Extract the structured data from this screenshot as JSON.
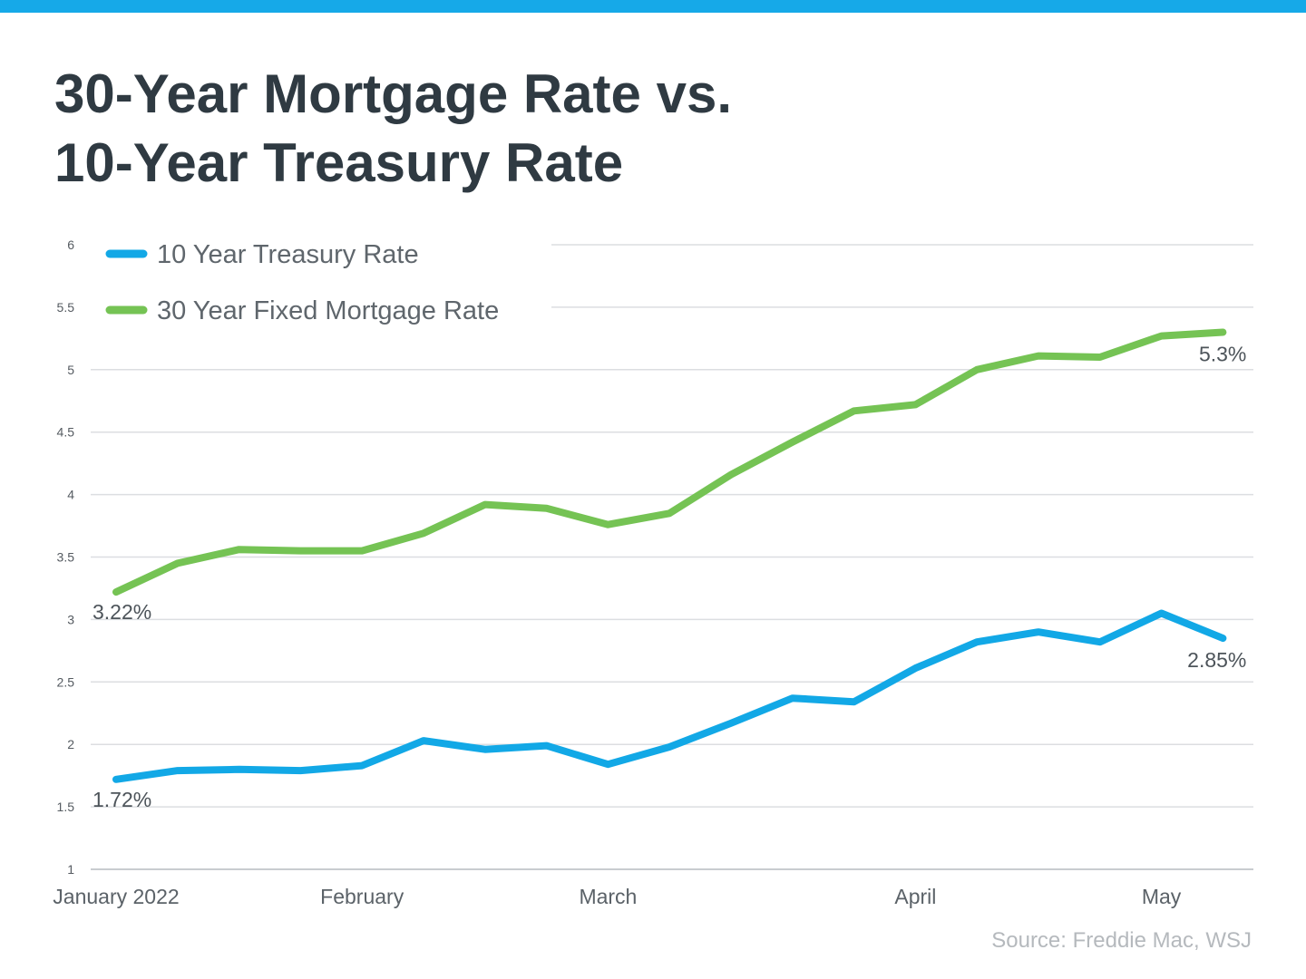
{
  "header": {
    "title_line1": "30-Year Mortgage Rate vs.",
    "title_line2": "10-Year Treasury Rate",
    "accent_color": "#16a9e8"
  },
  "footer": {
    "source": "Source: Freddie Mac, WSJ"
  },
  "chart_data": {
    "type": "line",
    "title": "30-Year Mortgage Rate vs. 10-Year Treasury Rate",
    "xlabel": "",
    "ylabel": "",
    "ylim": [
      1,
      6
    ],
    "yticks": [
      "1",
      "1.5",
      "2",
      "2.5",
      "3",
      "3.5",
      "4",
      "4.5",
      "5",
      "5.5",
      "6"
    ],
    "x_ticks": [
      {
        "label": "January 2022",
        "week": 0
      },
      {
        "label": "February",
        "week": 4
      },
      {
        "label": "March",
        "week": 8
      },
      {
        "label": "April",
        "week": 13
      },
      {
        "label": "May",
        "week": 17
      }
    ],
    "grid": true,
    "legend_position": "top-left",
    "series": [
      {
        "name": "10 Year Treasury Rate",
        "color": "#12a8e6",
        "values": [
          1.72,
          1.79,
          1.8,
          1.79,
          1.83,
          2.03,
          1.96,
          1.99,
          1.84,
          1.98,
          2.17,
          2.37,
          2.34,
          2.61,
          2.82,
          2.9,
          2.82,
          3.05,
          2.85
        ],
        "start_label": "1.72%",
        "end_label": "2.85%"
      },
      {
        "name": "30 Year Fixed Mortgage Rate",
        "color": "#75c354",
        "values": [
          3.22,
          3.45,
          3.56,
          3.55,
          3.55,
          3.69,
          3.92,
          3.89,
          3.76,
          3.85,
          4.16,
          4.42,
          4.67,
          4.72,
          5.0,
          5.11,
          5.1,
          5.27,
          5.3
        ],
        "start_label": "3.22%",
        "end_label": "5.3%"
      }
    ]
  }
}
